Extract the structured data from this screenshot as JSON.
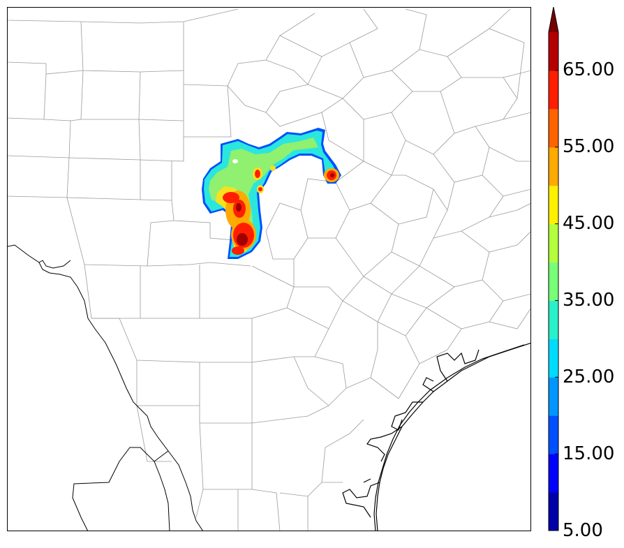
{
  "colorbar": {
    "labels": [
      "5.00",
      "15.00",
      "25.00",
      "35.00",
      "45.00",
      "55.00",
      "65.00"
    ],
    "colors": [
      "#0000a8",
      "#0000ff",
      "#0050ff",
      "#0096ff",
      "#00dcff",
      "#28f0c8",
      "#78ff78",
      "#b4ff3c",
      "#fff000",
      "#ffaa00",
      "#ff6400",
      "#ff1e00",
      "#b40000",
      "#780000"
    ],
    "extend": "max"
  },
  "map": {
    "county_line_color": "#9a9a9a",
    "coast_color": "#000000",
    "echo_colors": {
      "blue": "#0050ff",
      "cyan": "#00e6ff",
      "green": "#78ff78",
      "yellow": "#fff000",
      "orange": "#ffaa00",
      "red": "#ff1e00",
      "darkred": "#a00000"
    }
  }
}
